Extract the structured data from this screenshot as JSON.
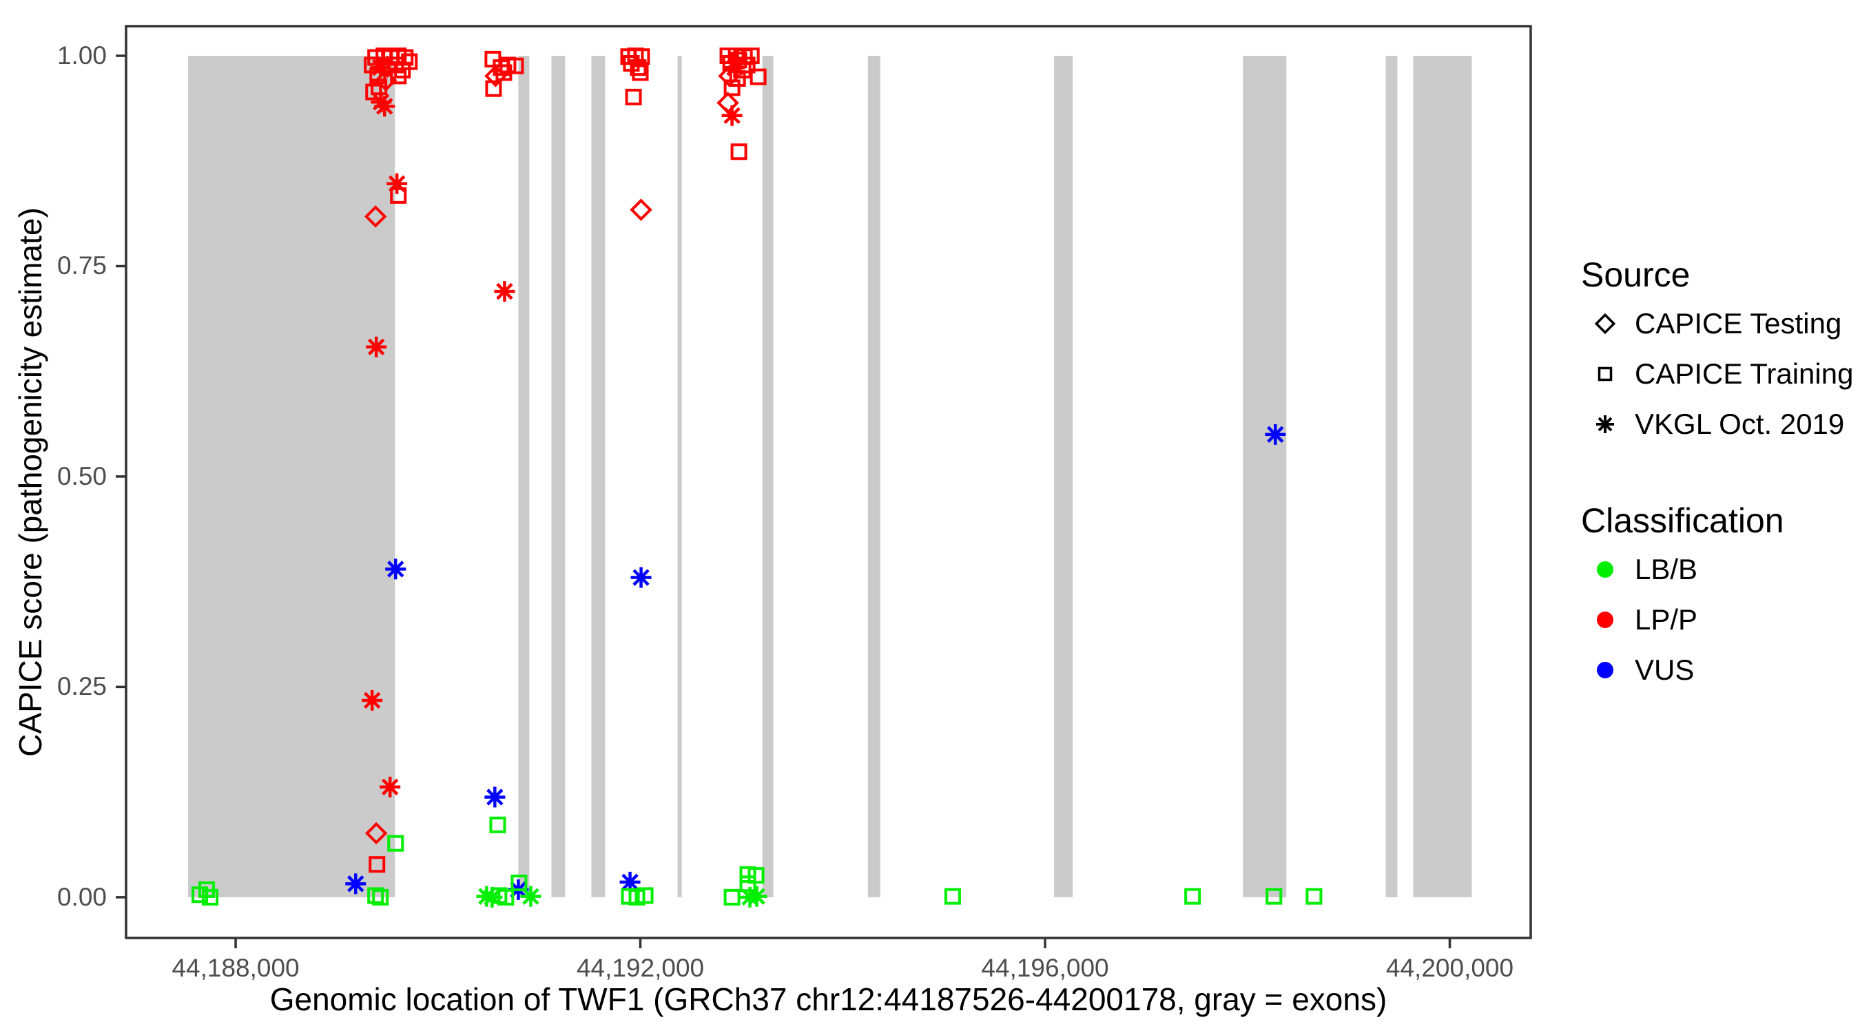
{
  "figure": {
    "x_axis_title": "Genomic location of TWF1 (GRCh37 chr12:44187526-44200178, gray = exons)",
    "y_axis_title": "CAPICE score (pathogenicity estimate)"
  },
  "legend": {
    "source": {
      "title": "Source",
      "items": [
        {
          "shape": "diamond",
          "label": "CAPICE Testing"
        },
        {
          "shape": "square",
          "label": "CAPICE Training"
        },
        {
          "shape": "asterisk",
          "label": "VKGL Oct. 2019"
        }
      ]
    },
    "classification": {
      "title": "Classification",
      "items": [
        {
          "label": "LB/B",
          "color": "#00ee00"
        },
        {
          "label": "LP/P",
          "color": "#ff0000"
        },
        {
          "label": "VUS",
          "color": "#0000ff"
        }
      ]
    }
  },
  "chart_data": {
    "type": "scatter",
    "title": "",
    "xlabel": "Genomic location of TWF1 (GRCh37 chr12:44187526-44200178, gray = exons)",
    "ylabel": "CAPICE score (pathogenicity estimate)",
    "x_range_bp": [
      44186917,
      44200800
    ],
    "y_range": [
      -0.0484,
      1.0352
    ],
    "grid": "off",
    "legend_position": "right",
    "colors": {
      "LB": "#00ee00",
      "LP": "#ff0000",
      "VUS": "#0000ff",
      "exon_band": "#cbcbcb",
      "axis_text": "#4d4d4d",
      "axis_line": "#333333"
    },
    "x_ticks": [
      {
        "bp": 44188000,
        "label": "44,188,000"
      },
      {
        "bp": 44192000,
        "label": "44,192,000"
      },
      {
        "bp": 44196000,
        "label": "44,196,000"
      },
      {
        "bp": 44200000,
        "label": "44,200,000"
      }
    ],
    "y_ticks": [
      {
        "v": 1.0,
        "label": "1.00"
      },
      {
        "v": 0.75,
        "label": "0.75"
      },
      {
        "v": 0.5,
        "label": "0.50"
      },
      {
        "v": 0.25,
        "label": "0.25"
      },
      {
        "v": 0.0,
        "label": "0.00"
      }
    ],
    "exons_bp": [
      [
        44187530,
        44189574
      ],
      [
        44190794,
        44190903
      ],
      [
        44191121,
        44191257
      ],
      [
        44191516,
        44191652
      ],
      [
        44192368,
        44192409
      ],
      [
        44193206,
        44193315
      ],
      [
        44194249,
        44194371
      ],
      [
        44196089,
        44196273
      ],
      [
        44197956,
        44198385
      ],
      [
        44199366,
        44199482
      ],
      [
        44199639,
        44200218
      ]
    ],
    "points_schema": [
      "bp",
      "capice_score",
      "shape(sq=CAPICE Training, di=CAPICE Testing, as=VKGL Oct. 2019)",
      "classification"
    ],
    "points": [
      [
        44189383,
        0.998,
        "sq",
        "LP"
      ],
      [
        44189465,
        1.0,
        "sq",
        "LP"
      ],
      [
        44189533,
        0.998,
        "sq",
        "LP"
      ],
      [
        44189608,
        1.0,
        "sq",
        "LP"
      ],
      [
        44189676,
        0.998,
        "sq",
        "LP"
      ],
      [
        44189717,
        0.993,
        "sq",
        "LP"
      ],
      [
        44189349,
        0.989,
        "sq",
        "LP"
      ],
      [
        44189431,
        0.986,
        "as",
        "LP"
      ],
      [
        44189499,
        0.987,
        "di",
        "LP"
      ],
      [
        44189581,
        0.989,
        "sq",
        "LP"
      ],
      [
        44189649,
        0.983,
        "sq",
        "LP"
      ],
      [
        44189404,
        0.976,
        "sq",
        "LP"
      ],
      [
        44189485,
        0.971,
        "di",
        "LP"
      ],
      [
        44189608,
        0.976,
        "sq",
        "LP"
      ],
      [
        44189417,
        0.963,
        "sq",
        "LP"
      ],
      [
        44189363,
        0.957,
        "sq",
        "LP"
      ],
      [
        44189438,
        0.945,
        "as",
        "LP"
      ],
      [
        44189472,
        0.94,
        "as",
        "LP"
      ],
      [
        44189594,
        0.848,
        "as",
        "LP"
      ],
      [
        44189608,
        0.834,
        "sq",
        "LP"
      ],
      [
        44189383,
        0.809,
        "di",
        "LP"
      ],
      [
        44189390,
        0.654,
        "as",
        "LP"
      ],
      [
        44189349,
        0.234,
        "as",
        "LP"
      ],
      [
        44189526,
        0.131,
        "as",
        "LP"
      ],
      [
        44189390,
        0.076,
        "di",
        "LP"
      ],
      [
        44189397,
        0.039,
        "sq",
        "LP"
      ],
      [
        44190542,
        0.996,
        "sq",
        "LP"
      ],
      [
        44190624,
        0.986,
        "sq",
        "LP"
      ],
      [
        44190692,
        0.989,
        "sq",
        "LP"
      ],
      [
        44190767,
        0.988,
        "sq",
        "LP"
      ],
      [
        44190569,
        0.976,
        "di",
        "LP"
      ],
      [
        44190651,
        0.98,
        "sq",
        "LP"
      ],
      [
        44190549,
        0.961,
        "sq",
        "LP"
      ],
      [
        44190658,
        0.72,
        "as",
        "LP"
      ],
      [
        44191884,
        0.999,
        "sq",
        "LP"
      ],
      [
        44191952,
        1.0,
        "sq",
        "LP"
      ],
      [
        44192013,
        0.999,
        "sq",
        "LP"
      ],
      [
        44191911,
        0.991,
        "sq",
        "LP"
      ],
      [
        44191979,
        0.986,
        "sq",
        "LP"
      ],
      [
        44192000,
        0.98,
        "sq",
        "LP"
      ],
      [
        44191932,
        0.951,
        "sq",
        "LP"
      ],
      [
        44192007,
        0.817,
        "di",
        "LP"
      ],
      [
        44192865,
        1.0,
        "sq",
        "LP"
      ],
      [
        44192947,
        1.0,
        "sq",
        "LP"
      ],
      [
        44193029,
        0.999,
        "sq",
        "LP"
      ],
      [
        44193097,
        1.0,
        "sq",
        "LP"
      ],
      [
        44192893,
        0.991,
        "sq",
        "LP"
      ],
      [
        44192974,
        0.995,
        "sq",
        "LP"
      ],
      [
        44193056,
        0.989,
        "sq",
        "LP"
      ],
      [
        44192933,
        0.986,
        "as",
        "LP"
      ],
      [
        44193015,
        0.983,
        "sq",
        "LP"
      ],
      [
        44192879,
        0.976,
        "di",
        "LP"
      ],
      [
        44192961,
        0.973,
        "sq",
        "LP"
      ],
      [
        44193165,
        0.975,
        "sq",
        "LP"
      ],
      [
        44192906,
        0.962,
        "sq",
        "LP"
      ],
      [
        44192865,
        0.944,
        "di",
        "LP"
      ],
      [
        44192906,
        0.929,
        "as",
        "LP"
      ],
      [
        44192974,
        0.886,
        "sq",
        "LP"
      ],
      [
        44189581,
        0.39,
        "as",
        "VUS"
      ],
      [
        44192007,
        0.38,
        "as",
        "VUS"
      ],
      [
        44198276,
        0.55,
        "as",
        "VUS"
      ],
      [
        44190562,
        0.119,
        "as",
        "VUS"
      ],
      [
        44189186,
        0.016,
        "as",
        "VUS"
      ],
      [
        44190794,
        0.009,
        "as",
        "VUS"
      ],
      [
        44191898,
        0.018,
        "as",
        "VUS"
      ],
      [
        44187646,
        0.003,
        "sq",
        "LB"
      ],
      [
        44187714,
        0.009,
        "sq",
        "LB"
      ],
      [
        44187748,
        0.0,
        "sq",
        "LB"
      ],
      [
        44189383,
        0.002,
        "sq",
        "LB"
      ],
      [
        44189431,
        0.0,
        "sq",
        "LB"
      ],
      [
        44189581,
        0.064,
        "sq",
        "LB"
      ],
      [
        44190590,
        0.086,
        "sq",
        "LB"
      ],
      [
        44190481,
        0.001,
        "as",
        "LB"
      ],
      [
        44190535,
        0.0,
        "as",
        "LB"
      ],
      [
        44190603,
        0.002,
        "sq",
        "LB"
      ],
      [
        44190671,
        0.0,
        "sq",
        "LB"
      ],
      [
        44190801,
        0.017,
        "sq",
        "LB"
      ],
      [
        44190917,
        0.001,
        "as",
        "LB"
      ],
      [
        44191891,
        0.001,
        "sq",
        "LB"
      ],
      [
        44191966,
        0.0,
        "sq",
        "LB"
      ],
      [
        44192048,
        0.002,
        "sq",
        "LB"
      ],
      [
        44192906,
        0.0,
        "sq",
        "LB"
      ],
      [
        44193062,
        0.027,
        "sq",
        "LB"
      ],
      [
        44193062,
        0.016,
        "sq",
        "LB"
      ],
      [
        44193144,
        0.026,
        "sq",
        "LB"
      ],
      [
        44193083,
        0.0,
        "as",
        "LB"
      ],
      [
        44193151,
        0.001,
        "as",
        "LB"
      ],
      [
        44195087,
        0.001,
        "sq",
        "LB"
      ],
      [
        44197458,
        0.001,
        "sq",
        "LB"
      ],
      [
        44198262,
        0.001,
        "sq",
        "LB"
      ],
      [
        44198658,
        0.001,
        "sq",
        "LB"
      ]
    ]
  }
}
